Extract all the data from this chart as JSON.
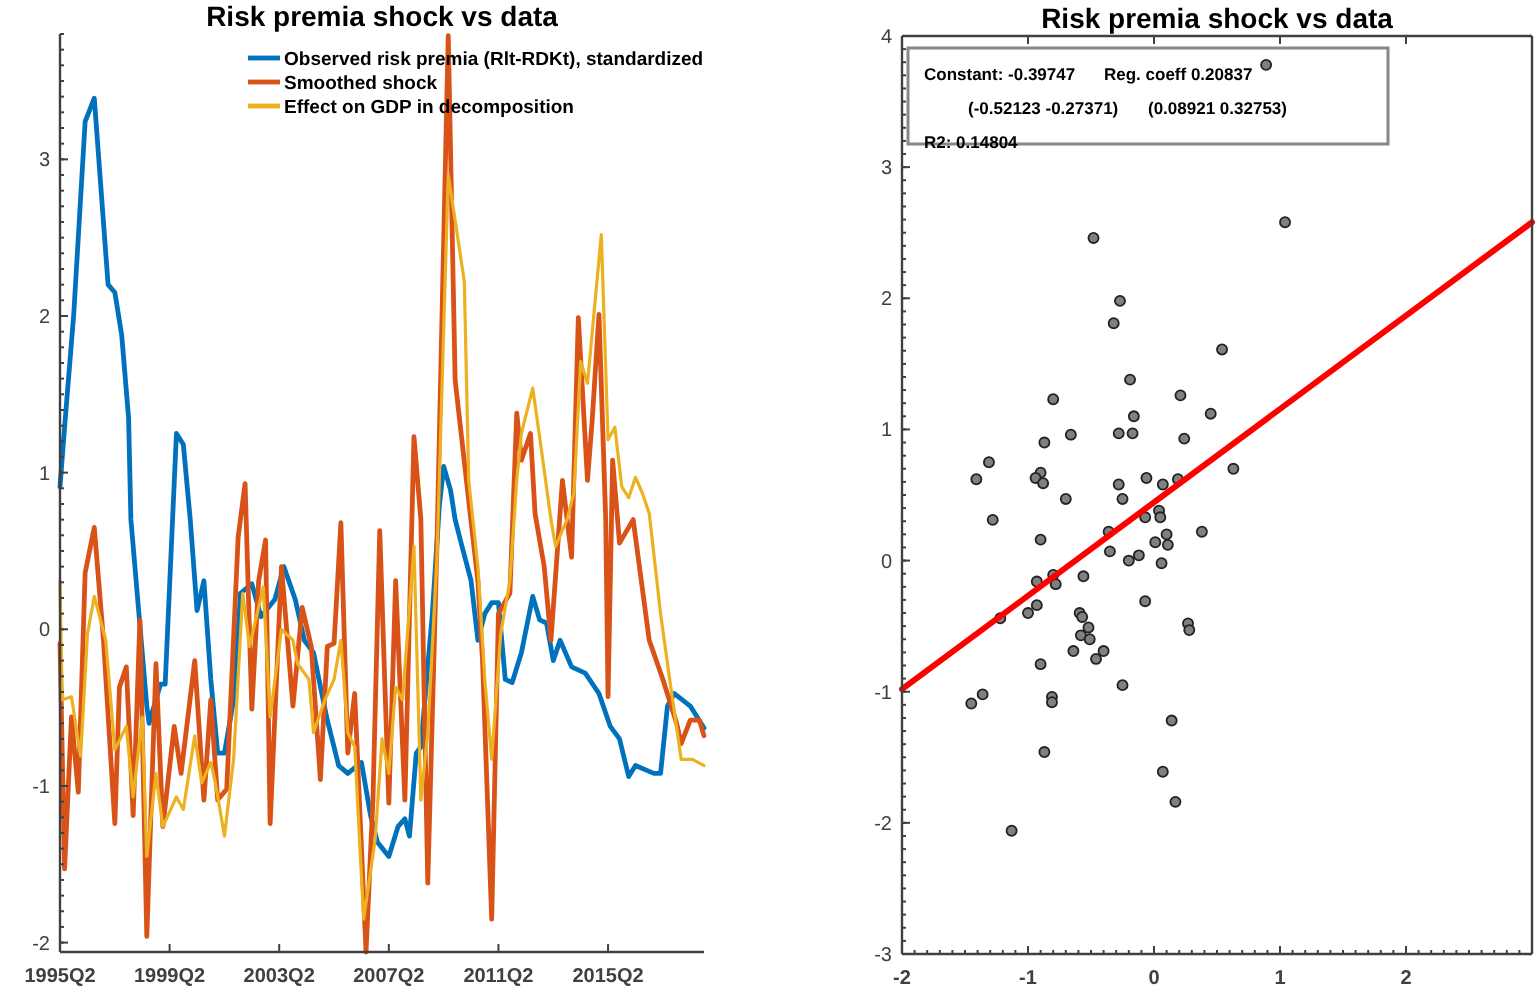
{
  "chart_data": [
    {
      "type": "line",
      "title": "Risk premia shock vs data",
      "xlim": [
        "1995-04",
        "2018-10"
      ],
      "xticks": [
        {
          "value": "1995-04",
          "label": "1995Q2"
        },
        {
          "value": "1999-04",
          "label": "1999Q2"
        },
        {
          "value": "2003-04",
          "label": "2003Q2"
        },
        {
          "value": "2007-04",
          "label": "2007Q2"
        },
        {
          "value": "2011-04",
          "label": "2011Q2"
        },
        {
          "value": "2015-04",
          "label": "2015Q2"
        }
      ],
      "ylim": [
        -2.06,
        3.8
      ],
      "yticks": [
        -2,
        -1,
        0,
        1,
        2,
        3
      ],
      "legend": "top right",
      "marker": "none",
      "line_style": "solid",
      "series": [
        {
          "name": "Observed risk premia (Rlt-RDKt), standardized",
          "color": "#0072bd",
          "x": [
            "1995-04",
            "1995-06",
            "1995-10",
            "1996-03",
            "1996-07",
            "1997-01",
            "1997-04",
            "1997-07",
            "1997-10",
            "1997-11",
            "1998-06",
            "1998-07",
            "1998-12",
            "1999-02",
            "1999-07",
            "1999-10",
            "2000-01",
            "2000-04",
            "2000-07",
            "2000-10",
            "2001-01",
            "2001-04",
            "2001-08",
            "2001-11",
            "2002-04",
            "2002-08",
            "2003-02",
            "2003-06",
            "2003-11",
            "2004-03",
            "2004-07",
            "2005-01",
            "2005-06",
            "2005-10",
            "2006-04",
            "2006-08",
            "2006-11",
            "2007-04",
            "2007-08",
            "2007-11",
            "2008-01",
            "2008-04",
            "2008-06",
            "2008-11",
            "2009-02",
            "2009-04",
            "2009-07",
            "2009-09",
            "2009-12",
            "2010-04",
            "2010-07",
            "2010-10",
            "2011-01",
            "2011-04",
            "2011-07",
            "2011-10",
            "2012-02",
            "2012-07",
            "2012-10",
            "2013-01",
            "2013-04",
            "2013-07",
            "2013-12",
            "2014-06",
            "2014-12",
            "2015-05",
            "2015-09",
            "2016-01",
            "2016-04",
            "2016-12",
            "2017-03",
            "2017-06",
            "2017-09",
            "2018-04",
            "2018-10"
          ],
          "values": [
            0.91,
            1.29,
            2.01,
            3.24,
            3.39,
            2.2,
            2.15,
            1.88,
            1.35,
            0.7,
            -0.49,
            -0.6,
            -0.35,
            -0.35,
            1.25,
            1.18,
            0.7,
            0.12,
            0.31,
            -0.32,
            -0.79,
            -0.79,
            -0.45,
            0.23,
            0.29,
            0.08,
            0.19,
            0.4,
            0.19,
            -0.07,
            -0.15,
            -0.58,
            -0.87,
            -0.92,
            -0.85,
            -1.19,
            -1.36,
            -1.45,
            -1.26,
            -1.21,
            -1.32,
            -0.79,
            -0.75,
            0.1,
            0.78,
            1.04,
            0.89,
            0.7,
            0.53,
            0.31,
            -0.07,
            0.1,
            0.17,
            0.17,
            -0.32,
            -0.34,
            -0.15,
            0.21,
            0.06,
            0.04,
            -0.2,
            -0.07,
            -0.24,
            -0.28,
            -0.41,
            -0.62,
            -0.7,
            -0.94,
            -0.87,
            -0.92,
            -0.92,
            -0.49,
            -0.41,
            -0.49,
            -0.63
          ]
        },
        {
          "name": "Smoothed shock",
          "color": "#d95319",
          "x": [
            "1995-04",
            "1995-06",
            "1995-09",
            "1995-12",
            "1996-03",
            "1996-07",
            "1996-11",
            "1997-04",
            "1997-06",
            "1997-09",
            "1997-12",
            "1998-03",
            "1998-06",
            "1998-10",
            "1999-01",
            "1999-06",
            "1999-09",
            "2000-03",
            "2000-07",
            "2000-10",
            "2001-01",
            "2001-05",
            "2001-10",
            "2002-01",
            "2002-04",
            "2002-07",
            "2002-10",
            "2002-12",
            "2003-05",
            "2003-10",
            "2004-02",
            "2004-06",
            "2004-10",
            "2005-01",
            "2005-04",
            "2005-07",
            "2005-10",
            "2006-01",
            "2006-06",
            "2006-09",
            "2006-12",
            "2007-04",
            "2007-07",
            "2007-11",
            "2008-03",
            "2008-06",
            "2008-09",
            "2009-01",
            "2009-06",
            "2009-09",
            "2010-03",
            "2010-07",
            "2010-09",
            "2011-01",
            "2011-04",
            "2011-09",
            "2011-12",
            "2012-02",
            "2012-06",
            "2012-08",
            "2012-12",
            "2013-03",
            "2013-08",
            "2013-12",
            "2014-03",
            "2014-07",
            "2014-09",
            "2014-12",
            "2015-03",
            "2015-04",
            "2015-06",
            "2015-09",
            "2016-03",
            "2016-10",
            "2017-04",
            "2017-10",
            "2017-12",
            "2018-04",
            "2018-08",
            "2018-10"
          ],
          "values": [
            -0.09,
            -1.53,
            -0.56,
            -1.04,
            0.36,
            0.65,
            -0.07,
            -1.24,
            -0.37,
            -0.24,
            -1.19,
            0.06,
            -1.96,
            -0.22,
            -1.26,
            -0.62,
            -0.92,
            -0.2,
            -1.09,
            -0.45,
            -1.09,
            -1.02,
            0.59,
            0.93,
            -0.51,
            0.31,
            0.57,
            -1.24,
            0.4,
            -0.49,
            0.14,
            -0.11,
            -0.96,
            -0.11,
            -0.09,
            0.68,
            -0.79,
            -0.41,
            -2.06,
            -1.09,
            0.63,
            -1.11,
            0.31,
            -1.09,
            1.23,
            0.7,
            -1.62,
            0.53,
            3.79,
            1.59,
            0.82,
            0.31,
            -0.2,
            -1.85,
            0.1,
            0.23,
            1.38,
            1.08,
            1.25,
            0.74,
            0.4,
            -0.07,
            0.95,
            0.46,
            1.99,
            0.95,
            1.33,
            2.01,
            0.7,
            -0.43,
            1.08,
            0.55,
            0.7,
            -0.07,
            -0.32,
            -0.6,
            -0.73,
            -0.58,
            -0.58,
            -0.68
          ]
        },
        {
          "name": "Effect on GDP in decomposition",
          "color": "#edb120",
          "x": [
            "1995-04",
            "1995-05",
            "1995-09",
            "1996-01",
            "1996-04",
            "1996-07",
            "1996-12",
            "1997-04",
            "1997-09",
            "1997-12",
            "1998-04",
            "1998-06",
            "1998-10",
            "1999-01",
            "1999-07",
            "1999-10",
            "2000-03",
            "2000-06",
            "2000-10",
            "2000-12",
            "2001-04",
            "2001-08",
            "2001-12",
            "2002-03",
            "2002-09",
            "2002-12",
            "2003-05",
            "2003-10",
            "2003-12",
            "2004-05",
            "2004-07",
            "2004-12",
            "2005-04",
            "2005-07",
            "2005-10",
            "2006-01",
            "2006-05",
            "2006-10",
            "2007-01",
            "2007-04",
            "2007-07",
            "2007-10",
            "2008-03",
            "2008-06",
            "2008-09",
            "2009-01",
            "2009-06",
            "2009-09",
            "2010-01",
            "2010-03",
            "2010-07",
            "2010-10",
            "2011-01",
            "2011-05",
            "2011-09",
            "2011-12",
            "2012-02",
            "2012-07",
            "2012-11",
            "2013-03",
            "2013-05",
            "2013-10",
            "2014-01",
            "2014-04",
            "2014-07",
            "2015-01",
            "2015-04",
            "2015-07",
            "2015-10",
            "2016-01",
            "2016-04",
            "2016-07",
            "2016-10",
            "2017-03",
            "2017-07",
            "2017-12",
            "2018-05",
            "2018-10"
          ],
          "values": [
            0.31,
            -0.45,
            -0.43,
            -0.81,
            -0.03,
            0.21,
            -0.07,
            -0.77,
            -0.62,
            -1.07,
            -0.56,
            -1.45,
            -0.92,
            -1.26,
            -1.07,
            -1.15,
            -0.68,
            -0.98,
            -0.85,
            -0.98,
            -1.32,
            -0.83,
            0.23,
            -0.11,
            0.27,
            -0.56,
            0.0,
            -0.07,
            -0.22,
            -0.32,
            -0.66,
            -0.45,
            -0.32,
            -0.07,
            -0.66,
            -0.75,
            -1.85,
            -1.34,
            -0.7,
            -0.92,
            -0.37,
            -0.45,
            0.53,
            -1.09,
            -0.66,
            0.44,
            2.9,
            2.61,
            2.22,
            0.95,
            0.4,
            -0.32,
            -0.83,
            -0.03,
            0.31,
            0.95,
            1.25,
            1.54,
            1.12,
            0.7,
            0.53,
            0.7,
            0.87,
            1.71,
            1.57,
            2.52,
            1.21,
            1.29,
            0.91,
            0.84,
            0.97,
            0.87,
            0.74,
            0.1,
            -0.32,
            -0.83,
            -0.83,
            -0.87
          ]
        }
      ]
    },
    {
      "type": "scatter",
      "title": "Risk premia shock vs data",
      "xlim": [
        -2,
        3
      ],
      "xticks": [
        -2,
        -1,
        0,
        1,
        2
      ],
      "ylim": [
        -3,
        4
      ],
      "yticks": [
        -3,
        -2,
        -1,
        0,
        1,
        2,
        3,
        4
      ],
      "annotations": [
        "Constant: -0.39747",
        "Reg. coeff 0.20837",
        "(-0.52123 -0.27371)",
        "(0.08921 0.32753)",
        "R2: 0.14804"
      ],
      "series": [
        {
          "color": "#808080",
          "marker": "circle",
          "x": [
            0.89,
            1.04,
            -0.48,
            -0.27,
            -0.32,
            0.54,
            -0.19,
            -0.8,
            0.21,
            0.45,
            -0.16,
            -0.28,
            -0.17,
            -0.66,
            0.24,
            -0.87,
            -1.31,
            -1.41,
            -0.9,
            -0.94,
            -0.88,
            0.63,
            -0.06,
            0.07,
            -0.28,
            0.19,
            -0.7,
            -0.25,
            -1.28,
            -0.9,
            0.04,
            0.05,
            -0.07,
            -0.36,
            -0.35,
            0.1,
            0.11,
            0.01,
            0.38,
            -0.12,
            -0.2,
            0.06,
            -0.93,
            -0.8,
            -0.78,
            -0.56,
            -0.07,
            -0.93,
            -1.0,
            -0.59,
            -0.57,
            -1.22,
            -0.52,
            -0.58,
            -0.51,
            0.27,
            0.28,
            -0.64,
            -0.4,
            -0.46,
            -0.9,
            -0.25,
            -1.36,
            -1.45,
            -0.81,
            -0.81,
            0.14,
            -0.87,
            0.07,
            0.17,
            -1.13
          ],
          "values": [
            3.78,
            2.58,
            2.46,
            1.98,
            1.81,
            1.61,
            1.38,
            1.23,
            1.26,
            1.12,
            1.1,
            0.97,
            0.97,
            0.96,
            0.93,
            0.9,
            0.75,
            0.62,
            0.67,
            0.63,
            0.59,
            0.7,
            0.63,
            0.58,
            0.58,
            0.62,
            0.47,
            0.47,
            0.31,
            0.16,
            0.38,
            0.33,
            0.33,
            0.22,
            0.07,
            0.2,
            0.12,
            0.14,
            0.22,
            0.04,
            0.0,
            -0.02,
            -0.16,
            -0.11,
            -0.18,
            -0.12,
            -0.31,
            -0.34,
            -0.4,
            -0.4,
            -0.43,
            -0.44,
            -0.51,
            -0.57,
            -0.6,
            -0.48,
            -0.53,
            -0.69,
            -0.69,
            -0.75,
            -0.79,
            -0.95,
            -1.02,
            -1.09,
            -1.04,
            -1.08,
            -1.22,
            -1.46,
            -1.61,
            -1.84,
            -2.06
          ]
        },
        {
          "type": "line",
          "color": "#ff0000",
          "marker": "none",
          "x": [
            -2,
            3
          ],
          "values": [
            -0.98,
            2.58
          ]
        }
      ]
    }
  ]
}
